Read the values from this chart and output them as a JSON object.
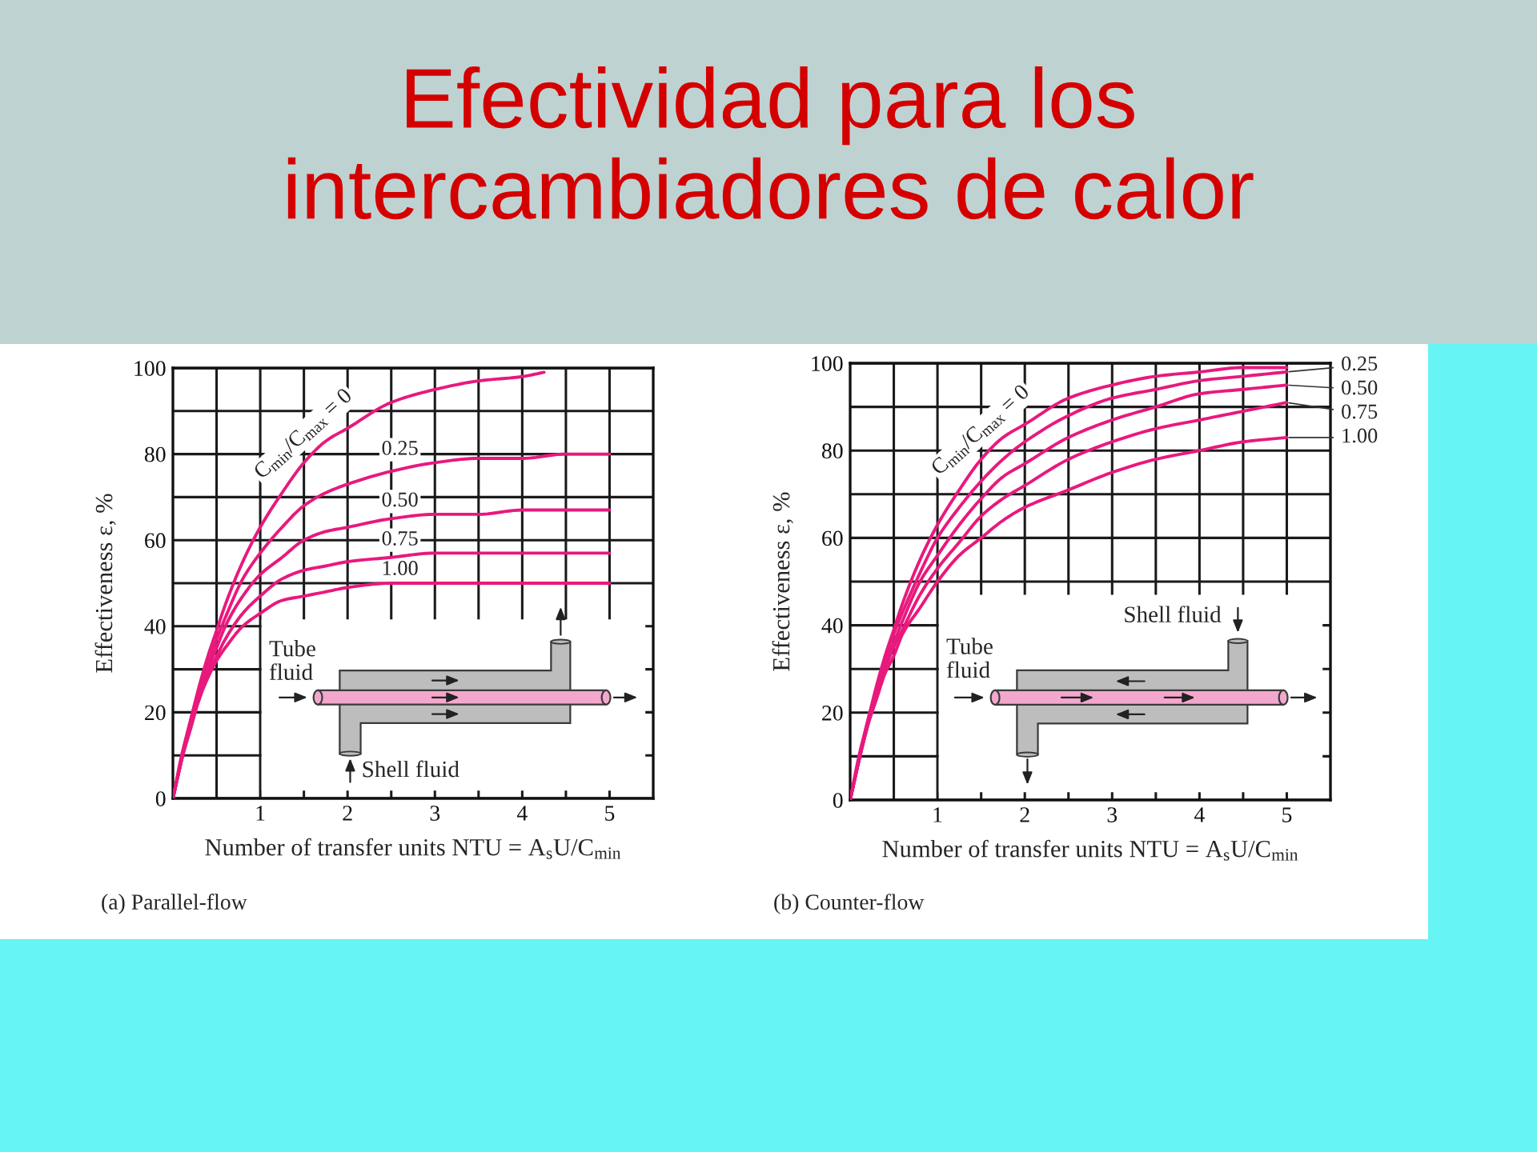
{
  "chart_data": [
    {
      "type": "line",
      "title": "Efectividad para los\nintercambiadores de calor",
      "xlabel": "Number of transfer units NTU = A$_{s}$U/C$_{min}$",
      "ylabel": "Effectiveness ε, %",
      "annotations": [
        "Tube\nfluid",
        "Shell fluid",
        "(a) Parallel-flow"
      ],
      "xlim": [
        0,
        5.5
      ],
      "ylim": [
        0,
        100
      ],
      "xticks": [
        {
          "value": 0.5,
          "label": null
        },
        1,
        {
          "value": 1.5,
          "label": null
        },
        2,
        {
          "value": 2.5,
          "label": null
        },
        3,
        {
          "value": 3.5,
          "label": null
        },
        4,
        {
          "value": 4.5,
          "label": null
        },
        5
      ],
      "yticks": [
        0,
        {
          "value": 10,
          "label": null
        },
        20,
        {
          "value": 30,
          "label": null
        },
        40,
        {
          "value": 50,
          "label": null
        },
        60,
        {
          "value": 70,
          "label": null
        },
        80,
        {
          "value": 90,
          "label": null
        },
        100
      ],
      "grid": true,
      "series": [
        {
          "name": "C$_{min}$/C$_{max}$ = 0",
          "color": "#e8197d",
          "x": [
            0,
            0.1,
            0.2,
            0.3,
            0.4,
            0.5,
            0.6,
            0.8,
            1,
            1.25,
            1.5,
            1.75,
            2,
            2.5,
            3,
            3.5,
            4,
            4.25
          ],
          "values": [
            0,
            10,
            18,
            26,
            33,
            39,
            45,
            55,
            63,
            71,
            78,
            83,
            86,
            92,
            95,
            97,
            98,
            99
          ]
        },
        {
          "name": "0.25",
          "color": "#e8197d",
          "x": [
            0,
            0.1,
            0.2,
            0.3,
            0.4,
            0.5,
            0.6,
            0.8,
            1,
            1.25,
            1.5,
            1.75,
            2,
            2.5,
            3,
            3.5,
            4,
            4.5,
            5
          ],
          "values": [
            0,
            9,
            18,
            25,
            31,
            37,
            42,
            51,
            57,
            63,
            68,
            71,
            73,
            76,
            78,
            79,
            79,
            80,
            80
          ]
        },
        {
          "name": "0.50",
          "color": "#e8197d",
          "x": [
            0,
            0.1,
            0.2,
            0.3,
            0.4,
            0.5,
            0.6,
            0.8,
            1,
            1.25,
            1.5,
            1.75,
            2,
            2.5,
            3,
            3.5,
            4,
            4.5,
            5
          ],
          "values": [
            0,
            9,
            17,
            24,
            30,
            35,
            40,
            47,
            52,
            56,
            60,
            62,
            63,
            65,
            66,
            66,
            67,
            67,
            67
          ]
        },
        {
          "name": "0.75",
          "color": "#e8197d",
          "x": [
            0,
            0.1,
            0.2,
            0.3,
            0.4,
            0.5,
            0.6,
            0.8,
            1,
            1.25,
            1.5,
            1.75,
            2,
            2.5,
            3,
            3.5,
            4,
            4.5,
            5
          ],
          "values": [
            0,
            9,
            17,
            23,
            29,
            33,
            37,
            43,
            47,
            51,
            53,
            54,
            55,
            56,
            57,
            57,
            57,
            57,
            57
          ]
        },
        {
          "name": "1.00",
          "color": "#e8197d",
          "x": [
            0,
            0.1,
            0.2,
            0.3,
            0.4,
            0.5,
            0.6,
            0.8,
            1,
            1.25,
            1.5,
            1.75,
            2,
            2.5,
            3,
            3.5,
            4,
            4.5,
            5
          ],
          "values": [
            0,
            9,
            16,
            23,
            28,
            32,
            35,
            40,
            43,
            46,
            47,
            48,
            49,
            50,
            50,
            50,
            50,
            50,
            50
          ]
        }
      ]
    },
    {
      "type": "line",
      "xlabel": "Number of transfer units NTU = A$_{s}$U/C$_{min}$",
      "ylabel": "Effectiveness ε, %",
      "annotations": [
        "Tube\nfluid",
        "Shell fluid",
        "(b) Counter-flow"
      ],
      "xlim": [
        0,
        5.5
      ],
      "ylim": [
        0,
        100
      ],
      "xticks": [
        {
          "value": 0.5,
          "label": null
        },
        1,
        {
          "value": 1.5,
          "label": null
        },
        2,
        {
          "value": 2.5,
          "label": null
        },
        3,
        {
          "value": 3.5,
          "label": null
        },
        4,
        {
          "value": 4.5,
          "label": null
        },
        5
      ],
      "yticks": [
        0,
        {
          "value": 10,
          "label": null
        },
        20,
        {
          "value": 30,
          "label": null
        },
        40,
        {
          "value": 50,
          "label": null
        },
        60,
        {
          "value": 70,
          "label": null
        },
        80,
        {
          "value": 90,
          "label": null
        },
        100
      ],
      "grid": true,
      "series": [
        {
          "name": "C$_{min}$/C$_{max}$ = 0",
          "color": "#e8197d",
          "x": [
            0,
            0.1,
            0.2,
            0.3,
            0.4,
            0.5,
            0.6,
            0.8,
            1,
            1.25,
            1.5,
            1.75,
            2,
            2.5,
            3,
            3.5,
            4,
            4.5,
            5
          ],
          "values": [
            0,
            10,
            18,
            26,
            33,
            39,
            45,
            55,
            63,
            71,
            78,
            83,
            86,
            92,
            95,
            97,
            98,
            99,
            99
          ]
        },
        {
          "name": "0.25",
          "color": "#e8197d",
          "x": [
            0,
            0.1,
            0.2,
            0.3,
            0.4,
            0.5,
            0.6,
            0.8,
            1,
            1.25,
            1.5,
            1.75,
            2,
            2.5,
            3,
            3.5,
            4,
            4.5,
            5
          ],
          "values": [
            0,
            9,
            18,
            25,
            32,
            38,
            43,
            52,
            60,
            67,
            73,
            78,
            82,
            88,
            92,
            94,
            96,
            97,
            98
          ]
        },
        {
          "name": "0.50",
          "color": "#e8197d",
          "x": [
            0,
            0.1,
            0.2,
            0.3,
            0.4,
            0.5,
            0.6,
            0.8,
            1,
            1.25,
            1.5,
            1.75,
            2,
            2.5,
            3,
            3.5,
            4,
            4.5,
            5
          ],
          "values": [
            0,
            9,
            17,
            24,
            31,
            36,
            41,
            50,
            56,
            63,
            69,
            74,
            77,
            83,
            87,
            90,
            93,
            94,
            95
          ]
        },
        {
          "name": "0.75",
          "color": "#e8197d",
          "x": [
            0,
            0.1,
            0.2,
            0.3,
            0.4,
            0.5,
            0.6,
            0.8,
            1,
            1.25,
            1.5,
            1.75,
            2,
            2.5,
            3,
            3.5,
            4,
            4.5,
            5
          ],
          "values": [
            0,
            9,
            17,
            24,
            30,
            35,
            39,
            47,
            53,
            59,
            65,
            69,
            72,
            78,
            82,
            85,
            87,
            89,
            91
          ]
        },
        {
          "name": "1.00",
          "color": "#e8197d",
          "x": [
            0,
            0.1,
            0.2,
            0.3,
            0.4,
            0.5,
            0.6,
            0.8,
            1,
            1.25,
            1.5,
            1.75,
            2,
            2.5,
            3,
            3.5,
            4,
            4.5,
            5
          ],
          "values": [
            0,
            9,
            17,
            23,
            29,
            33,
            38,
            44,
            50,
            56,
            60,
            64,
            67,
            71,
            75,
            78,
            80,
            82,
            83
          ]
        }
      ]
    }
  ]
}
